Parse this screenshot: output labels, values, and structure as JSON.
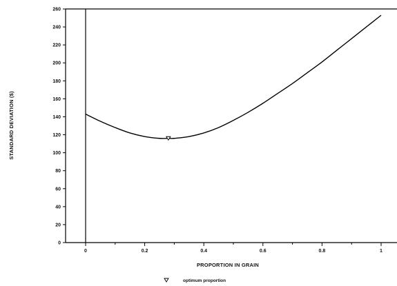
{
  "chart_data": {
    "type": "line",
    "xlabel": "PROPORTION IN GRAIN",
    "ylabel": "STANDARD DEVIATION ($)",
    "xlim": [
      -0.07,
      1.05
    ],
    "ylim": [
      0,
      260
    ],
    "x_ticks": [
      "0",
      "0.2",
      "0.4",
      "0.6",
      "0.8",
      "1"
    ],
    "x_tick_values": [
      0,
      0.2,
      0.4,
      0.6,
      0.8,
      1
    ],
    "y_ticks": [
      "0",
      "20",
      "40",
      "60",
      "80",
      "100",
      "120",
      "140",
      "160",
      "180",
      "200",
      "220",
      "240",
      "260"
    ],
    "y_tick_values": [
      0,
      20,
      40,
      60,
      80,
      100,
      120,
      140,
      160,
      180,
      200,
      220,
      240,
      260
    ],
    "grid": false,
    "series": [
      {
        "x": [
          0,
          0.05,
          0.1,
          0.15,
          0.2,
          0.25,
          0.28,
          0.3,
          0.35,
          0.4,
          0.45,
          0.5,
          0.55,
          0.6,
          0.65,
          0.7,
          0.75,
          0.8,
          0.85,
          0.9,
          0.95,
          1.0
        ],
        "values": [
          143,
          135,
          128,
          122,
          118,
          116,
          116,
          116,
          118,
          122,
          128,
          136,
          145,
          155,
          166,
          177,
          189,
          201,
          214,
          227,
          240,
          253
        ],
        "color": "#000000"
      }
    ],
    "markers": [
      {
        "x": 0.28,
        "y": 116,
        "symbol": "triangle-down-open"
      }
    ],
    "legend": {
      "position": "bottom-center",
      "entries": [
        {
          "symbol": "triangle-down-open",
          "label": "optimum proportion"
        }
      ]
    }
  }
}
